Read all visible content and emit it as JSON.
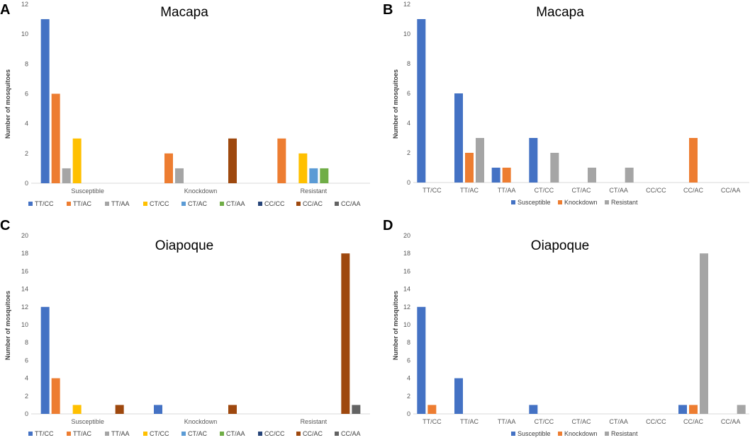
{
  "colors": {
    "TT/CC": "#4472C4",
    "TT/AC": "#ED7D31",
    "TT/AA": "#A5A5A5",
    "CT/CC": "#FFC000",
    "CT/AC": "#5B9BD5",
    "CT/AA": "#70AD47",
    "CC/CC": "#264478",
    "CC/AC": "#9E480E",
    "CC/AA": "#636363",
    "Susceptible": "#4472C4",
    "Knockdown": "#ED7D31",
    "Resistant": "#A5A5A5"
  },
  "chart_data": [
    {
      "panel": "A",
      "type": "bar",
      "title": "Macapa",
      "ylabel": "Number of mosquitoes",
      "xlabel": "",
      "ylim": [
        0,
        12
      ],
      "yticks": [
        0,
        2,
        4,
        6,
        8,
        10,
        12
      ],
      "categories": [
        "Susceptible",
        "Knockdown",
        "Resistant"
      ],
      "series": [
        {
          "name": "TT/CC",
          "values": [
            11,
            0,
            0
          ]
        },
        {
          "name": "TT/AC",
          "values": [
            6,
            2,
            3
          ]
        },
        {
          "name": "TT/AA",
          "values": [
            1,
            1,
            0
          ]
        },
        {
          "name": "CT/CC",
          "values": [
            3,
            0,
            2
          ]
        },
        {
          "name": "CT/AC",
          "values": [
            0,
            0,
            1
          ]
        },
        {
          "name": "CT/AA",
          "values": [
            0,
            0,
            1
          ]
        },
        {
          "name": "CC/CC",
          "values": [
            0,
            0,
            0
          ]
        },
        {
          "name": "CC/AC",
          "values": [
            0,
            3,
            0
          ]
        },
        {
          "name": "CC/AA",
          "values": [
            0,
            0,
            0
          ]
        }
      ],
      "legend": [
        "TT/CC",
        "TT/AC",
        "TT/AA",
        "CT/CC",
        "CT/AC",
        "CT/AA",
        "CC/CC",
        "CC/AC",
        "CC/AA"
      ],
      "legend_position": "bottom"
    },
    {
      "panel": "B",
      "type": "bar",
      "title": "Macapa",
      "ylabel": "Number of mosquitoes",
      "xlabel": "",
      "ylim": [
        0,
        12
      ],
      "yticks": [
        0,
        2,
        4,
        6,
        8,
        10,
        12
      ],
      "categories": [
        "TT/CC",
        "TT/AC",
        "TT/AA",
        "CT/CC",
        "CT/AC",
        "CT/AA",
        "CC/CC",
        "CC/AC",
        "CC/AA"
      ],
      "series": [
        {
          "name": "Susceptible",
          "values": [
            11,
            6,
            1,
            3,
            0,
            0,
            0,
            0,
            0
          ]
        },
        {
          "name": "Knockdown",
          "values": [
            0,
            2,
            1,
            0,
            0,
            0,
            0,
            3,
            0
          ]
        },
        {
          "name": "Resistant",
          "values": [
            0,
            3,
            0,
            2,
            1,
            1,
            0,
            0,
            0
          ]
        }
      ],
      "legend": [
        "Susceptible",
        "Knockdown",
        "Resistant"
      ],
      "legend_position": "bottom"
    },
    {
      "panel": "C",
      "type": "bar",
      "title": "Oiapoque",
      "ylabel": "Number of mosquitoes",
      "xlabel": "",
      "ylim": [
        0,
        20
      ],
      "yticks": [
        0,
        2,
        4,
        6,
        8,
        10,
        12,
        14,
        16,
        18,
        20
      ],
      "categories": [
        "Susceptible",
        "Knockdown",
        "Resistant"
      ],
      "series": [
        {
          "name": "TT/CC",
          "values": [
            12,
            1,
            0
          ]
        },
        {
          "name": "TT/AC",
          "values": [
            4,
            0,
            0
          ]
        },
        {
          "name": "TT/AA",
          "values": [
            0,
            0,
            0
          ]
        },
        {
          "name": "CT/CC",
          "values": [
            1,
            0,
            0
          ]
        },
        {
          "name": "CT/AC",
          "values": [
            0,
            0,
            0
          ]
        },
        {
          "name": "CT/AA",
          "values": [
            0,
            0,
            0
          ]
        },
        {
          "name": "CC/CC",
          "values": [
            0,
            0,
            0
          ]
        },
        {
          "name": "CC/AC",
          "values": [
            1,
            1,
            18
          ]
        },
        {
          "name": "CC/AA",
          "values": [
            0,
            0,
            1
          ]
        }
      ],
      "legend": [
        "TT/CC",
        "TT/AC",
        "TT/AA",
        "CT/CC",
        "CT/AC",
        "CT/AA",
        "CC/CC",
        "CC/AC",
        "CC/AA"
      ],
      "legend_position": "bottom"
    },
    {
      "panel": "D",
      "type": "bar",
      "title": "Oiapoque",
      "ylabel": "Number of mosquitoes",
      "xlabel": "",
      "ylim": [
        0,
        20
      ],
      "yticks": [
        0,
        2,
        4,
        6,
        8,
        10,
        12,
        14,
        16,
        18,
        20
      ],
      "categories": [
        "TT/CC",
        "TT/AC",
        "TT/AA",
        "CT/CC",
        "CT/AC",
        "CT/AA",
        "CC/CC",
        "CC/AC",
        "CC/AA"
      ],
      "series": [
        {
          "name": "Susceptible",
          "values": [
            12,
            4,
            0,
            1,
            0,
            0,
            0,
            1,
            0
          ]
        },
        {
          "name": "Knockdown",
          "values": [
            1,
            0,
            0,
            0,
            0,
            0,
            0,
            1,
            0
          ]
        },
        {
          "name": "Resistant",
          "values": [
            0,
            0,
            0,
            0,
            0,
            0,
            0,
            18,
            1
          ]
        }
      ],
      "legend": [
        "Susceptible",
        "Knockdown",
        "Resistant"
      ],
      "legend_position": "bottom"
    }
  ]
}
